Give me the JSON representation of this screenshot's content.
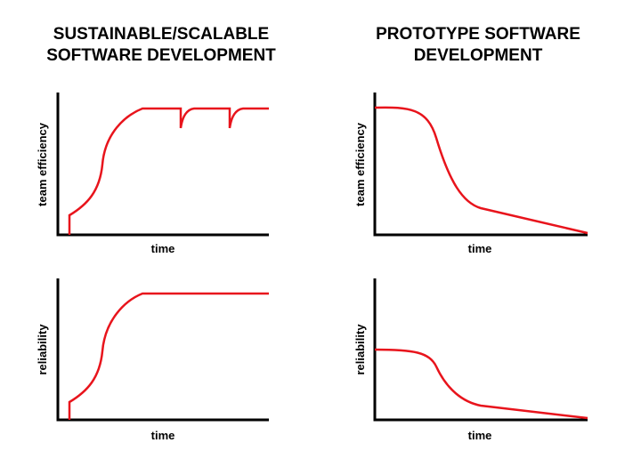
{
  "columns": [
    {
      "title_line1": "SUSTAINABLE/SCALABLE",
      "title_line2": "SOFTWARE DEVELOPMENT",
      "charts": [
        {
          "ylabel": "team efficiency",
          "xlabel": "time"
        },
        {
          "ylabel": "reliability",
          "xlabel": "time"
        }
      ]
    },
    {
      "title_line1": "PROTOTYPE SOFTWARE",
      "title_line2": "DEVELOPMENT",
      "charts": [
        {
          "ylabel": "team efficiency",
          "xlabel": "time"
        },
        {
          "ylabel": "reliability",
          "xlabel": "time"
        }
      ]
    }
  ],
  "colors": {
    "curve": "#e8141c",
    "axis": "#000000"
  }
}
